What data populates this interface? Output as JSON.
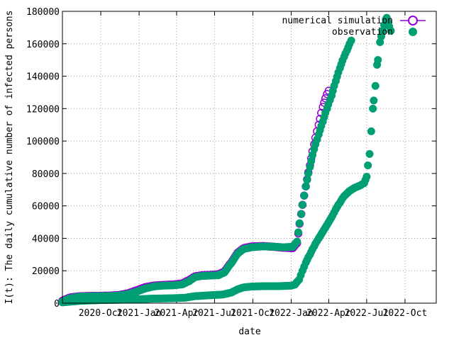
{
  "chart_data": {
    "type": "scatter",
    "title": "",
    "xlabel": "date",
    "ylabel": "I(t): The daily cumulative number of infected persons",
    "ylim": [
      0,
      180000
    ],
    "xlim": [
      "2020-07-01",
      "2022-12-15"
    ],
    "grid": true,
    "legend_position": "top-right",
    "y_ticks": [
      0,
      20000,
      40000,
      60000,
      80000,
      100000,
      120000,
      140000,
      160000,
      180000
    ],
    "y_tick_labels": [
      "0",
      "20000",
      "40000",
      "60000",
      "80000",
      "100000",
      "120000",
      "140000",
      "160000",
      "180000"
    ],
    "x_ticks": [
      "2020-10-01",
      "2021-01-01",
      "2021-04-01",
      "2021-07-01",
      "2021-10-01",
      "2022-01-01",
      "2022-04-01",
      "2022-07-01",
      "2022-10-01"
    ],
    "x_tick_labels": [
      "2020-Oct",
      "2021-Jan",
      "2021-Apr",
      "2021-Jul",
      "2021-Oct",
      "2022-Jan",
      "2022-Apr",
      "2022-Jul",
      "2022-Oct"
    ],
    "series": [
      {
        "name": "numerical simulation",
        "color": "#9400d3",
        "marker": "open-circle",
        "points": [
          [
            "2020-07-01",
            1500
          ],
          [
            "2020-07-20",
            3500
          ],
          [
            "2020-08-10",
            4200
          ],
          [
            "2020-09-01",
            4400
          ],
          [
            "2020-09-25",
            4500
          ],
          [
            "2020-10-20",
            4600
          ],
          [
            "2020-11-15",
            5000
          ],
          [
            "2020-12-05",
            6000
          ],
          [
            "2020-12-25",
            7800
          ],
          [
            "2021-01-15",
            9800
          ],
          [
            "2021-02-05",
            10800
          ],
          [
            "2021-02-28",
            11200
          ],
          [
            "2021-03-25",
            11500
          ],
          [
            "2021-04-15",
            12200
          ],
          [
            "2021-05-01",
            14200
          ],
          [
            "2021-05-15",
            16500
          ],
          [
            "2021-06-01",
            17200
          ],
          [
            "2021-06-20",
            17400
          ],
          [
            "2021-07-10",
            17800
          ],
          [
            "2021-07-25",
            19500
          ],
          [
            "2021-08-10",
            25000
          ],
          [
            "2021-08-25",
            31000
          ],
          [
            "2021-09-10",
            34000
          ],
          [
            "2021-09-30",
            35000
          ],
          [
            "2021-10-25",
            35200
          ],
          [
            "2021-11-20",
            34800
          ],
          [
            "2021-12-15",
            34200
          ],
          [
            "2022-01-05",
            34000
          ],
          [
            "2022-01-15",
            37000
          ],
          [
            "2022-01-25",
            55000
          ],
          [
            "2022-02-05",
            72000
          ],
          [
            "2022-02-15",
            85000
          ],
          [
            "2022-02-25",
            98000
          ],
          [
            "2022-03-08",
            110000
          ],
          [
            "2022-03-18",
            121000
          ],
          [
            "2022-03-28",
            129000
          ],
          [
            "2022-04-01",
            131000
          ]
        ]
      },
      {
        "name": "observation",
        "color": "#009e73",
        "marker": "filled-circle",
        "points": [
          [
            "2020-07-01",
            1000
          ],
          [
            "2020-07-20",
            3000
          ],
          [
            "2020-08-10",
            4000
          ],
          [
            "2020-09-01",
            4200
          ],
          [
            "2020-09-25",
            4300
          ],
          [
            "2020-10-20",
            4400
          ],
          [
            "2020-11-15",
            4700
          ],
          [
            "2020-12-05",
            5500
          ],
          [
            "2020-12-25",
            7000
          ],
          [
            "2021-01-15",
            9000
          ],
          [
            "2021-02-05",
            10300
          ],
          [
            "2021-02-28",
            10800
          ],
          [
            "2021-03-25",
            11000
          ],
          [
            "2021-04-15",
            11600
          ],
          [
            "2021-05-01",
            13500
          ],
          [
            "2021-05-15",
            16000
          ],
          [
            "2021-06-01",
            16800
          ],
          [
            "2021-06-20",
            17000
          ],
          [
            "2021-07-10",
            17200
          ],
          [
            "2021-07-25",
            19000
          ],
          [
            "2021-08-10",
            24500
          ],
          [
            "2021-08-25",
            30500
          ],
          [
            "2021-09-10",
            33500
          ],
          [
            "2021-09-30",
            34500
          ],
          [
            "2021-10-25",
            35000
          ],
          [
            "2021-11-20",
            34800
          ],
          [
            "2021-12-15",
            34500
          ],
          [
            "2022-01-05",
            34800
          ],
          [
            "2022-01-15",
            38000
          ],
          [
            "2022-01-25",
            55000
          ],
          [
            "2022-02-05",
            72000
          ],
          [
            "2022-02-15",
            84000
          ],
          [
            "2022-02-25",
            95000
          ],
          [
            "2022-03-08",
            104000
          ],
          [
            "2022-03-18",
            112000
          ],
          [
            "2022-03-28",
            120000
          ],
          [
            "2022-04-08",
            128000
          ],
          [
            "2022-04-18",
            137000
          ],
          [
            "2022-04-28",
            145000
          ],
          [
            "2022-05-08",
            152000
          ],
          [
            "2022-05-15",
            156000
          ],
          [
            "2022-05-25",
            162000
          ],
          [
            "2020-07-01",
            500
          ],
          [
            "2020-08-15",
            1500
          ],
          [
            "2020-10-01",
            1900
          ],
          [
            "2020-11-15",
            2100
          ],
          [
            "2020-12-20",
            2300
          ],
          [
            "2021-02-01",
            2800
          ],
          [
            "2021-03-15",
            3000
          ],
          [
            "2021-04-20",
            3300
          ],
          [
            "2021-05-15",
            4300
          ],
          [
            "2021-06-15",
            4800
          ],
          [
            "2021-07-20",
            5300
          ],
          [
            "2021-08-10",
            6500
          ],
          [
            "2021-08-25",
            8500
          ],
          [
            "2021-09-10",
            9800
          ],
          [
            "2021-10-01",
            10300
          ],
          [
            "2021-11-01",
            10500
          ],
          [
            "2021-12-01",
            10500
          ],
          [
            "2022-01-01",
            10800
          ],
          [
            "2022-01-10",
            11500
          ],
          [
            "2022-01-20",
            14500
          ],
          [
            "2022-01-28",
            20000
          ],
          [
            "2022-02-05",
            25000
          ],
          [
            "2022-02-15",
            30000
          ],
          [
            "2022-02-25",
            35000
          ],
          [
            "2022-03-08",
            40000
          ],
          [
            "2022-03-20",
            45000
          ],
          [
            "2022-04-01",
            50000
          ],
          [
            "2022-04-10",
            54000
          ],
          [
            "2022-04-18",
            58000
          ],
          [
            "2022-04-28",
            62000
          ],
          [
            "2022-05-08",
            66000
          ],
          [
            "2022-05-20",
            69000
          ],
          [
            "2022-06-01",
            71000
          ],
          [
            "2022-06-15",
            72500
          ],
          [
            "2022-06-25",
            74000
          ],
          [
            "2022-07-01",
            78000
          ],
          [
            "2022-07-08",
            92000
          ],
          [
            "2022-07-12",
            106000
          ],
          [
            "2022-07-16",
            120000
          ],
          [
            "2022-07-18",
            125000
          ],
          [
            "2022-07-22",
            134000
          ],
          [
            "2022-07-26",
            147000
          ],
          [
            "2022-07-28",
            150000
          ],
          [
            "2022-08-02",
            161000
          ],
          [
            "2022-08-08",
            168000
          ],
          [
            "2022-08-16",
            175000
          ],
          [
            "2022-08-18",
            176000
          ],
          [
            "2022-08-28",
            168000
          ]
        ]
      }
    ]
  }
}
